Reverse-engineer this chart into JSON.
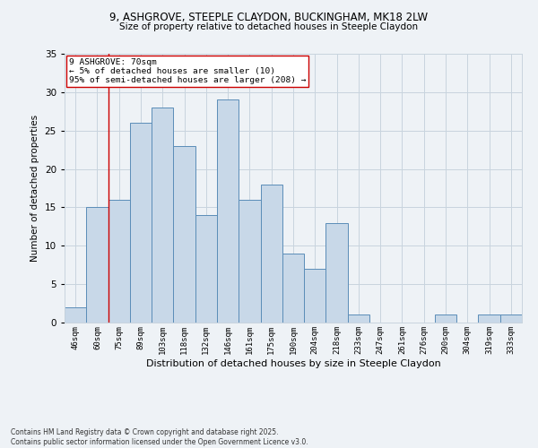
{
  "title_line1": "9, ASHGROVE, STEEPLE CLAYDON, BUCKINGHAM, MK18 2LW",
  "title_line2": "Size of property relative to detached houses in Steeple Claydon",
  "xlabel": "Distribution of detached houses by size in Steeple Claydon",
  "ylabel": "Number of detached properties",
  "categories": [
    "46sqm",
    "60sqm",
    "75sqm",
    "89sqm",
    "103sqm",
    "118sqm",
    "132sqm",
    "146sqm",
    "161sqm",
    "175sqm",
    "190sqm",
    "204sqm",
    "218sqm",
    "233sqm",
    "247sqm",
    "261sqm",
    "276sqm",
    "290sqm",
    "304sqm",
    "319sqm",
    "333sqm"
  ],
  "values": [
    2,
    15,
    16,
    26,
    28,
    23,
    14,
    29,
    16,
    18,
    9,
    7,
    13,
    1,
    0,
    0,
    0,
    1,
    0,
    1,
    1
  ],
  "bar_color": "#c8d8e8",
  "bar_edge_color": "#5b8db8",
  "bar_edge_width": 0.7,
  "grid_color": "#c8d4de",
  "background_color": "#eef2f6",
  "vline_x": 1.5,
  "vline_color": "#cc0000",
  "annotation_text": "9 ASHGROVE: 70sqm\n← 5% of detached houses are smaller (10)\n95% of semi-detached houses are larger (208) →",
  "annotation_box_color": "#ffffff",
  "annotation_box_edge": "#cc0000",
  "footer": "Contains HM Land Registry data © Crown copyright and database right 2025.\nContains public sector information licensed under the Open Government Licence v3.0.",
  "ylim": [
    0,
    35
  ],
  "yticks": [
    0,
    5,
    10,
    15,
    20,
    25,
    30,
    35
  ]
}
